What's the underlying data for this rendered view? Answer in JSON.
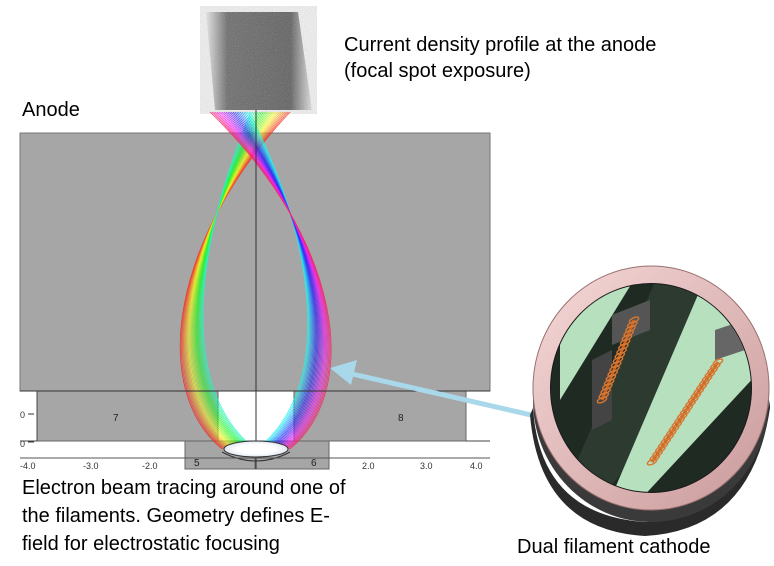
{
  "labels": {
    "anode": "Anode",
    "profile_line1": "Current density profile at the anode",
    "profile_line2": "(focal spot exposure)",
    "caption_line1": "Electron beam tracing around one of",
    "caption_line2": "the filaments. Geometry defines E-",
    "caption_line3": "field for electrostatic focusing",
    "cathode": "Dual filament cathode"
  },
  "sim": {
    "regions": [
      "7",
      "8",
      "5",
      "6"
    ],
    "x_ticks": [
      "-4.0",
      "-3.0",
      "-2.0",
      "2.0",
      "3.0",
      "4.0"
    ]
  },
  "colors": {
    "sim_gray": "#a6a6a6",
    "arrow": "#a8d8ea",
    "cathode_pink": "#efc6c6",
    "cathode_green": "#b6e0be",
    "coil": "#c4622a"
  }
}
